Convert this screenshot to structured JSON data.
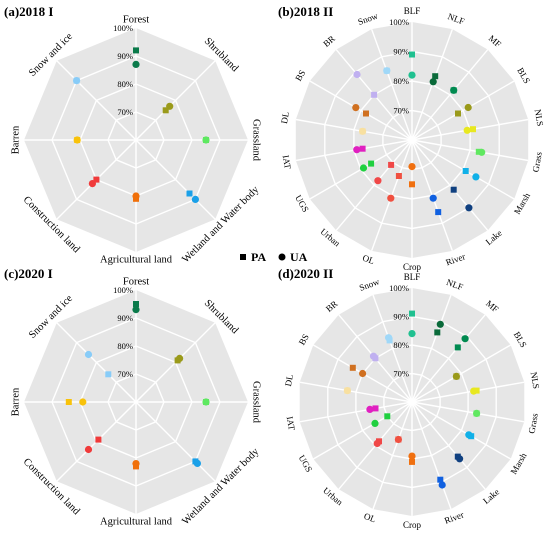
{
  "legend": {
    "pa_label": "PA",
    "ua_label": "UA"
  },
  "chart_data": [
    {
      "type": "radar",
      "title": "(a)2018 I",
      "rlim": [
        60,
        100
      ],
      "rticks": [
        "70%",
        "80%",
        "90%",
        "100%"
      ],
      "categories": [
        "Forest",
        "Shrubland",
        "Grassland",
        "Wetland and Water body",
        "Agricultural land",
        "Construction land",
        "Barren",
        "Snow and ice"
      ],
      "colors": [
        "#0a7a4a",
        "#9a9a1a",
        "#5ee860",
        "#1aa0e8",
        "#f0700a",
        "#f03a3a",
        "#f8c20a",
        "#88ccf8"
      ],
      "series": [
        {
          "name": "PA",
          "values": [
            92,
            75,
            85,
            87,
            81,
            80,
            81,
            90
          ]
        },
        {
          "name": "UA",
          "values": [
            87,
            77,
            85,
            90,
            80,
            82,
            81,
            90
          ]
        }
      ]
    },
    {
      "type": "radar",
      "title": "(b)2018 II",
      "rlim": [
        60,
        100
      ],
      "rticks": [
        "70%",
        "80%",
        "90%",
        "100%"
      ],
      "categories": [
        "BLF",
        "NLF",
        "MF",
        "BLS",
        "NLS",
        "Grass",
        "Marsh",
        "Lake",
        "River",
        "Crop",
        "OL",
        "Urban",
        "UGS",
        "IAT",
        "DL",
        "BS",
        "BR",
        "Snow"
      ],
      "colors": [
        "#20c090",
        "#0a6a3a",
        "#008a50",
        "#9a9a1a",
        "#e8e820",
        "#60e860",
        "#10b0e8",
        "#104080",
        "#1060e0",
        "#f07010",
        "#f05040",
        "#f04848",
        "#20d040",
        "#e020c0",
        "#f8e0a0",
        "#d07020",
        "#c0b0f0",
        "#a0d8f8"
      ],
      "series": [
        {
          "name": "PA",
          "values": [
            89,
            83,
            82,
            78,
            81,
            83,
            81,
            82,
            86,
            75,
            73,
            71,
            76,
            77,
            77,
            78,
            80,
            85
          ]
        },
        {
          "name": "UA",
          "values": [
            82,
            81,
            82,
            82,
            79,
            84,
            85,
            90,
            81,
            69,
            81,
            78,
            79,
            79,
            77,
            82,
            89,
            85
          ]
        }
      ]
    },
    {
      "type": "radar",
      "title": "(c)2020 I",
      "rlim": [
        60,
        100
      ],
      "rticks": [
        "70%",
        "80%",
        "90%",
        "100%"
      ],
      "categories": [
        "Forest",
        "Shrubland",
        "Grassland",
        "Wetland and Water body",
        "Agricultural land",
        "Construction land",
        "Barren",
        "Snow and ice"
      ],
      "colors": [
        "#0a7a4a",
        "#9a9a1a",
        "#5ee860",
        "#1aa0e8",
        "#f0700a",
        "#f03a3a",
        "#f8c20a",
        "#88ccf8"
      ],
      "series": [
        {
          "name": "PA",
          "values": [
            95,
            81,
            85,
            90,
            83,
            79,
            84,
            74
          ]
        },
        {
          "name": "UA",
          "values": [
            93,
            82,
            85,
            91,
            82,
            84,
            79,
            84
          ]
        }
      ]
    },
    {
      "type": "radar",
      "title": "(d)2020 II",
      "rlim": [
        60,
        100
      ],
      "rticks": [
        "70%",
        "80%",
        "90%",
        "100%"
      ],
      "categories": [
        "BLF",
        "NLF",
        "MF",
        "BLS",
        "NLS",
        "Grass",
        "Marsh",
        "Lake",
        "River",
        "Crop",
        "OL",
        "Urban",
        "UGS",
        "IAT",
        "DL",
        "BS",
        "BR",
        "Snow"
      ],
      "colors": [
        "#20c090",
        "#0a6a3a",
        "#008a50",
        "#9a9a1a",
        "#e8e820",
        "#60e860",
        "#10b0e8",
        "#104080",
        "#1060e0",
        "#f07010",
        "#f05040",
        "#f04848",
        "#20d040",
        "#e020c0",
        "#f8e0a0",
        "#d07020",
        "#c0b0f0",
        "#a0d8f8"
      ],
      "series": [
        {
          "name": "PA",
          "values": [
            91,
            86,
            85,
            78,
            83,
            83,
            84,
            85,
            89,
            81,
            74,
            78,
            70,
            73,
            83,
            84,
            80,
            83
          ]
        },
        {
          "name": "UA",
          "values": [
            84,
            89,
            89,
            78,
            82,
            83,
            83,
            86,
            91,
            79,
            74,
            79,
            75,
            75,
            83,
            80,
            81,
            84
          ]
        }
      ]
    }
  ]
}
